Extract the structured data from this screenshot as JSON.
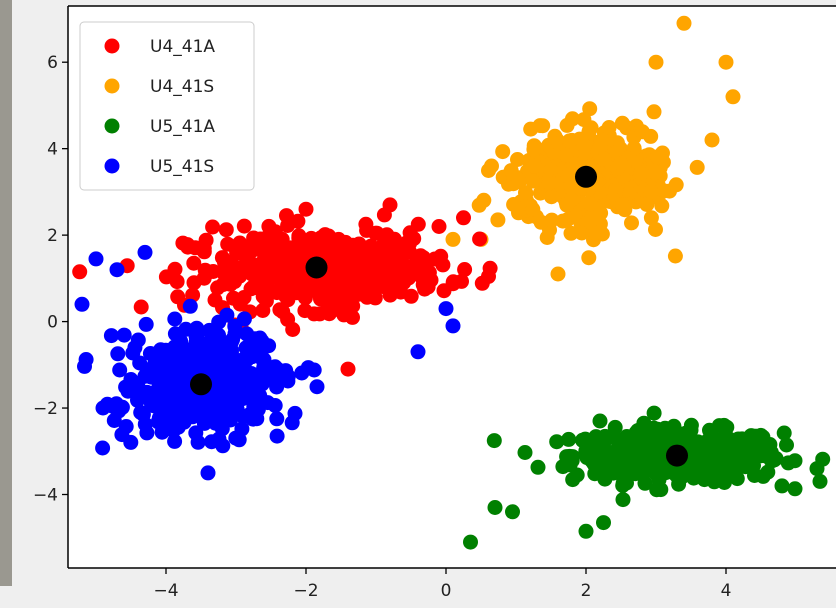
{
  "chart_data": {
    "type": "scatter",
    "title": "",
    "xlabel": "",
    "ylabel": "",
    "xlim": [
      -5.4,
      5.6
    ],
    "ylim": [
      -5.7,
      7.3
    ],
    "xticks": [
      "−4",
      "−2",
      "0",
      "2",
      "4"
    ],
    "xtick_values": [
      -4,
      -2,
      0,
      2,
      4
    ],
    "yticks": [
      "−4",
      "−2",
      "0",
      "2",
      "4",
      "6"
    ],
    "ytick_values": [
      -4,
      -2,
      0,
      2,
      4,
      6
    ],
    "grid": false,
    "legend_position": "top-left",
    "series": [
      {
        "name": "U4_41A",
        "color": "#ff0000",
        "center": [
          -1.85,
          1.25
        ],
        "spread": [
          0.9,
          0.45
        ],
        "outliers": [
          [
            -3.6,
            0.9
          ],
          [
            -3.3,
            0.5
          ],
          [
            -0.1,
            2.2
          ],
          [
            0.25,
            2.4
          ],
          [
            -1.4,
            -1.1
          ],
          [
            -2.0,
            2.6
          ],
          [
            -0.8,
            2.7
          ]
        ]
      },
      {
        "name": "U4_41S",
        "color": "#ffa500",
        "center": [
          2.0,
          3.35
        ],
        "spread": [
          0.55,
          0.55
        ],
        "outliers": [
          [
            3.4,
            6.9
          ],
          [
            4.0,
            6.0
          ],
          [
            4.1,
            5.2
          ],
          [
            3.8,
            4.2
          ],
          [
            0.1,
            1.9
          ],
          [
            0.5,
            1.9
          ],
          [
            1.6,
            1.1
          ],
          [
            0.65,
            3.6
          ],
          [
            3.0,
            6.0
          ]
        ]
      },
      {
        "name": "U5_41A",
        "color": "#008000",
        "center": [
          3.3,
          -3.1
        ],
        "spread": [
          0.75,
          0.3
        ],
        "outliers": [
          [
            0.35,
            -5.1
          ],
          [
            0.7,
            -4.3
          ],
          [
            0.95,
            -4.4
          ],
          [
            2.0,
            -4.85
          ],
          [
            5.3,
            -3.4
          ],
          [
            4.8,
            -3.8
          ],
          [
            2.2,
            -2.3
          ],
          [
            2.25,
            -4.65
          ]
        ]
      },
      {
        "name": "U5_41S",
        "color": "#0000ff",
        "center": [
          -3.5,
          -1.45
        ],
        "spread": [
          0.55,
          0.6
        ],
        "outliers": [
          [
            -5.2,
            0.4
          ],
          [
            -5.0,
            1.45
          ],
          [
            -4.7,
            1.2
          ],
          [
            -4.3,
            1.6
          ],
          [
            -4.9,
            -2.0
          ],
          [
            -3.4,
            -3.5
          ],
          [
            0.1,
            -0.1
          ],
          [
            0.0,
            0.3
          ],
          [
            -0.4,
            -0.7
          ]
        ]
      }
    ],
    "centroids": {
      "color": "#000000",
      "points": [
        [
          -1.85,
          1.25
        ],
        [
          2.0,
          3.35
        ],
        [
          3.3,
          -3.1
        ],
        [
          -3.5,
          -1.45
        ]
      ]
    }
  },
  "colors": {
    "background": "#efefef",
    "plot_background": "#ffffff",
    "left_strip": "#9a9890"
  }
}
